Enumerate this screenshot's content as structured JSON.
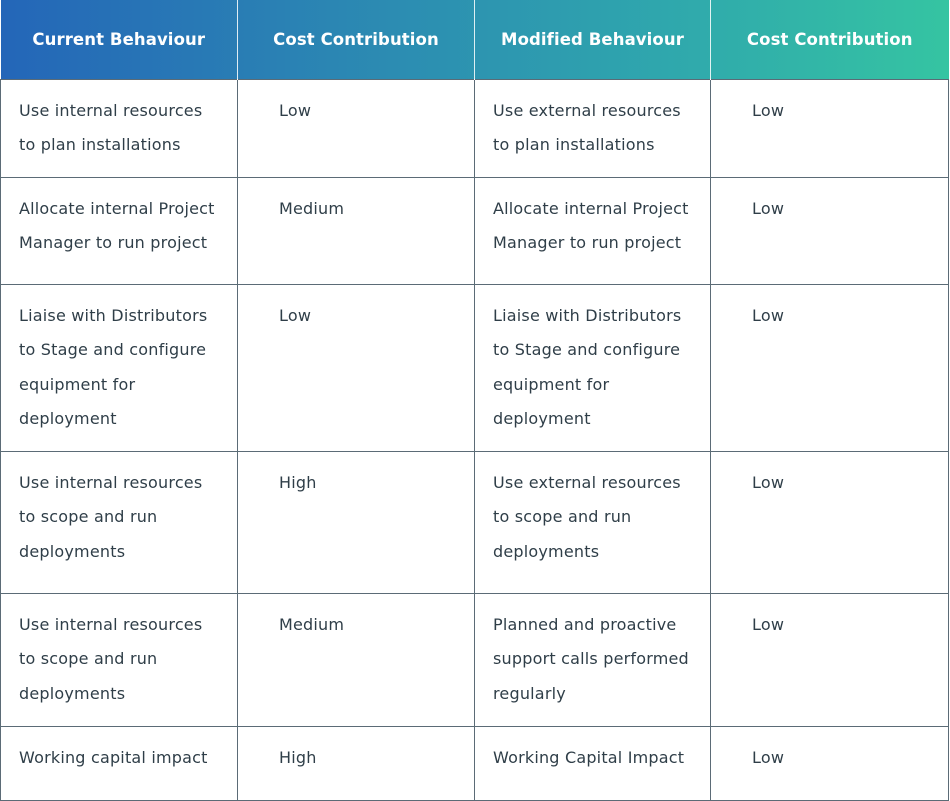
{
  "table": {
    "headers": [
      "Current Behaviour",
      "Cost Contribution",
      "Modified Behaviour",
      "Cost Contribution"
    ],
    "rows": [
      {
        "current": "Use internal resources to plan installations",
        "current_cost": "Low",
        "modified": "Use external resources to plan installations",
        "modified_cost": "Low"
      },
      {
        "current": "Allocate internal Project Manager to run project",
        "current_cost": "Medium",
        "modified": "Allocate internal Project Manager to run project",
        "modified_cost": "Low"
      },
      {
        "current": "Liaise with Distributors to Stage and configure equipment for deployment",
        "current_cost": "Low",
        "modified": "Liaise with Distributors to Stage and configure equipment for deployment",
        "modified_cost": "Low"
      },
      {
        "current": "Use internal resources to scope and run deployments",
        "current_cost": "High",
        "modified": "Use external resources to scope and run deployments",
        "modified_cost": "Low"
      },
      {
        "current": "Use internal resources to scope and run deployments",
        "current_cost": "Medium",
        "modified": "Planned and proactive support calls performed regularly",
        "modified_cost": "Low"
      },
      {
        "current": "Working capital impact",
        "current_cost": "High",
        "modified": "Working Capital Impact",
        "modified_cost": "Low"
      }
    ]
  },
  "colors": {
    "header_gradient_start": "#2466b8",
    "header_gradient_end": "#35c4a2",
    "border": "#5b6b76",
    "text": "#2f3e48"
  }
}
